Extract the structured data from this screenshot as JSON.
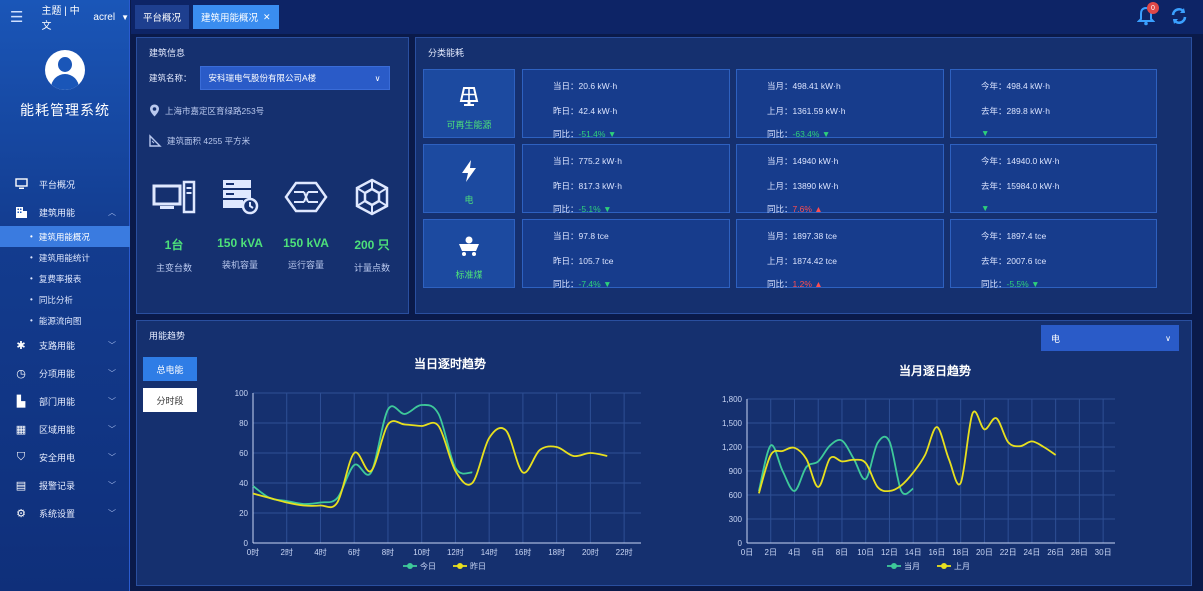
{
  "topbar": {
    "theme_label": "主题 | 中文",
    "user": "acrel",
    "tabs": [
      {
        "label": "平台概况"
      },
      {
        "label": "建筑用能概况"
      }
    ],
    "notification_count": "0"
  },
  "sidebar": {
    "system_title": "能耗管理系统",
    "items": [
      {
        "label": "平台概况",
        "icon": "monitor-icon"
      },
      {
        "label": "建筑用能",
        "icon": "building-icon"
      },
      {
        "label": "支路用能",
        "icon": "branch-icon"
      },
      {
        "label": "分项用能",
        "icon": "clock-icon"
      },
      {
        "label": "部门用能",
        "icon": "folder-icon"
      },
      {
        "label": "区域用能",
        "icon": "region-icon"
      },
      {
        "label": "安全用电",
        "icon": "shield-icon"
      },
      {
        "label": "报警记录",
        "icon": "document-icon"
      },
      {
        "label": "系统设置",
        "icon": "settings-icon"
      }
    ],
    "subitems": [
      "建筑用能概况",
      "建筑用能统计",
      "复费率报表",
      "同比分析",
      "能源流向图"
    ]
  },
  "building": {
    "title": "建筑信息",
    "name_label": "建筑名称：",
    "name_value": "安科瑞电气股份有限公司A楼",
    "address": "上海市嘉定区育绿路253号",
    "area": "建筑面积 4255 平方米",
    "stats": [
      {
        "value": "1台",
        "label": "主变台数"
      },
      {
        "value": "150 kVA",
        "label": "装机容量"
      },
      {
        "value": "150 kVA",
        "label": "运行容量"
      },
      {
        "value": "200 只",
        "label": "计量点数"
      }
    ]
  },
  "classification": {
    "title": "分类能耗",
    "rows": [
      {
        "name": "可再生能源",
        "day": {
          "l1": "当日：20.6 kW·h",
          "l2": "昨日：42.4 kW·h",
          "l3_label": "同比：",
          "l3_value": "-51.4%",
          "dir": "down"
        },
        "month": {
          "l1": "当月：498.41 kW·h",
          "l2": "上月：1361.59 kW·h",
          "l3_label": "同比：",
          "l3_value": "-63.4%",
          "dir": "down"
        },
        "year": {
          "l1": "今年：498.4 kW·h",
          "l2": "去年：289.8 kW·h",
          "l3_label": "",
          "l3_value": "",
          "dir": "down"
        }
      },
      {
        "name": "电",
        "day": {
          "l1": "当日：775.2 kW·h",
          "l2": "昨日：817.3 kW·h",
          "l3_label": "同比：",
          "l3_value": "-5.1%",
          "dir": "down"
        },
        "month": {
          "l1": "当月：14940 kW·h",
          "l2": "上月：13890 kW·h",
          "l3_label": "同比：",
          "l3_value": "7.6%",
          "dir": "up"
        },
        "year": {
          "l1": "今年：14940.0 kW·h",
          "l2": "去年：15984.0 kW·h",
          "l3_label": "",
          "l3_value": "",
          "dir": "down"
        }
      },
      {
        "name": "标准煤",
        "day": {
          "l1": "当日：97.8 tce",
          "l2": "昨日：105.7 tce",
          "l3_label": "同比：",
          "l3_value": "-7.4%",
          "dir": "down"
        },
        "month": {
          "l1": "当月：1897.38 tce",
          "l2": "上月：1874.42 tce",
          "l3_label": "同比：",
          "l3_value": "1.2%",
          "dir": "up"
        },
        "year": {
          "l1": "今年：1897.4 tce",
          "l2": "去年：2007.6 tce",
          "l3_label": "同比：",
          "l3_value": "-5.5%",
          "dir": "down"
        }
      }
    ]
  },
  "trend": {
    "title": "用能趋势",
    "type_select": "电",
    "btn_total": "总电能",
    "btn_period": "分时段",
    "colors": {
      "series_a": "#3ec99a",
      "series_b": "#e8e01e",
      "grid": "#2e4f95",
      "axis": "#c9d6f5"
    }
  },
  "chart_data": [
    {
      "type": "line",
      "title": "当日逐时趋势",
      "x": [
        "0时",
        "1时",
        "2时",
        "3时",
        "4时",
        "5时",
        "6时",
        "7时",
        "8时",
        "9时",
        "10时",
        "11时",
        "12时",
        "13时",
        "14时",
        "15时",
        "16时",
        "17时",
        "18时",
        "19时",
        "20时",
        "21时",
        "22时",
        "23时"
      ],
      "xticks": [
        "0时",
        "2时",
        "4时",
        "6时",
        "8时",
        "10时",
        "12时",
        "14时",
        "16时",
        "18时",
        "20时",
        "22时"
      ],
      "ylim": [
        0,
        100
      ],
      "yticks": [
        0,
        20,
        40,
        60,
        80,
        100
      ],
      "series": [
        {
          "name": "今日",
          "values": [
            38,
            30,
            28,
            26,
            27,
            30,
            52,
            47,
            89,
            86,
            92,
            86,
            50,
            47,
            null,
            null,
            null,
            null,
            null,
            null,
            null,
            null,
            null,
            null
          ]
        },
        {
          "name": "昨日",
          "values": [
            33,
            30,
            27,
            25,
            25,
            27,
            60,
            48,
            79,
            79,
            78,
            78,
            48,
            40,
            70,
            75,
            47,
            62,
            64,
            58,
            60,
            58,
            null,
            null
          ]
        }
      ]
    },
    {
      "type": "line",
      "title": "当月逐日趋势",
      "x": [
        "0日",
        "1日",
        "2日",
        "3日",
        "4日",
        "5日",
        "6日",
        "7日",
        "8日",
        "9日",
        "10日",
        "11日",
        "12日",
        "13日",
        "14日",
        "15日",
        "16日",
        "17日",
        "18日",
        "19日",
        "20日",
        "21日",
        "22日",
        "23日",
        "24日",
        "25日",
        "26日",
        "27日",
        "28日",
        "29日",
        "30日",
        "31日"
      ],
      "xticks": [
        "0日",
        "2日",
        "4日",
        "6日",
        "8日",
        "10日",
        "12日",
        "14日",
        "16日",
        "18日",
        "20日",
        "22日",
        "24日",
        "26日",
        "28日",
        "30日"
      ],
      "ylim": [
        0,
        1800
      ],
      "yticks": [
        0,
        300,
        600,
        900,
        1200,
        1500,
        1800
      ],
      "series": [
        {
          "name": "当月",
          "values": [
            null,
            650,
            1220,
            900,
            650,
            950,
            1020,
            1220,
            1280,
            1050,
            800,
            1250,
            1270,
            650,
            680,
            null,
            null,
            null,
            null,
            null,
            null,
            null,
            null,
            null,
            null,
            null,
            null,
            null,
            null,
            null,
            null,
            null
          ]
        },
        {
          "name": "上月",
          "values": [
            null,
            620,
            1100,
            1150,
            1190,
            1050,
            700,
            1060,
            1020,
            1040,
            1000,
            700,
            650,
            720,
            880,
            1100,
            1450,
            1050,
            750,
            1620,
            1420,
            1560,
            1260,
            1210,
            1270,
            1200,
            1100,
            null,
            null,
            null,
            null,
            null
          ]
        }
      ]
    }
  ]
}
